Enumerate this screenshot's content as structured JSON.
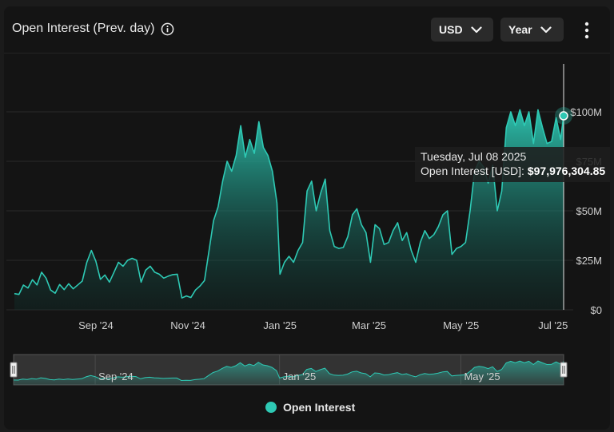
{
  "header": {
    "title": "Open Interest (Prev. day)",
    "currency_label": "USD",
    "range_label": "Year"
  },
  "tooltip": {
    "date": "Tuesday, Jul 08 2025",
    "series_label": "Open Interest [USD]: ",
    "value": "$97,976,304.85"
  },
  "colors": {
    "series": "#2ec9b4",
    "background": "#141414",
    "grid": "#2a2a2a"
  },
  "chart_data": {
    "type": "area",
    "x_ticks": [
      "Sep '24",
      "Nov '24",
      "Jan '25",
      "Mar '25",
      "May '25",
      "Jul '25"
    ],
    "x_tick_dates": [
      "2024-09-01",
      "2024-11-01",
      "2025-01-01",
      "2025-03-01",
      "2025-05-01",
      "2025-07-01"
    ],
    "x_range": [
      "2024-07-09",
      "2025-07-08"
    ],
    "y_ticks": [
      "$0",
      "$25M",
      "$50M",
      "$75M",
      "$100M"
    ],
    "y_tick_values": [
      0,
      25,
      50,
      75,
      100
    ],
    "ylim": [
      0,
      125
    ],
    "y_unit": "USD millions",
    "grid": true,
    "legend": "bottom-center",
    "navigator_ticks": [
      "Sep '24",
      "Jan '25",
      "May '25"
    ],
    "series": [
      {
        "name": "Open Interest",
        "points": [
          [
            "2024-07-09",
            8.2
          ],
          [
            "2024-07-12",
            7.8
          ],
          [
            "2024-07-15",
            12.5
          ],
          [
            "2024-07-18",
            11.0
          ],
          [
            "2024-07-21",
            15.2
          ],
          [
            "2024-07-24",
            12.6
          ],
          [
            "2024-07-27",
            19.0
          ],
          [
            "2024-07-30",
            16.0
          ],
          [
            "2024-08-02",
            10.0
          ],
          [
            "2024-08-05",
            8.4
          ],
          [
            "2024-08-08",
            12.8
          ],
          [
            "2024-08-11",
            10.2
          ],
          [
            "2024-08-14",
            13.2
          ],
          [
            "2024-08-17",
            10.6
          ],
          [
            "2024-08-20",
            12.6
          ],
          [
            "2024-08-23",
            14.5
          ],
          [
            "2024-08-26",
            24.0
          ],
          [
            "2024-08-29",
            30.0
          ],
          [
            "2024-09-01",
            24.5
          ],
          [
            "2024-09-04",
            15.4
          ],
          [
            "2024-09-07",
            17.6
          ],
          [
            "2024-09-10",
            14.0
          ],
          [
            "2024-09-13",
            19.0
          ],
          [
            "2024-09-16",
            24.0
          ],
          [
            "2024-09-19",
            22.0
          ],
          [
            "2024-09-22",
            25.0
          ],
          [
            "2024-09-25",
            26.0
          ],
          [
            "2024-09-28",
            25.0
          ],
          [
            "2024-10-01",
            14.0
          ],
          [
            "2024-10-04",
            20.0
          ],
          [
            "2024-10-07",
            22.0
          ],
          [
            "2024-10-10",
            19.0
          ],
          [
            "2024-10-13",
            18.0
          ],
          [
            "2024-10-16",
            16.0
          ],
          [
            "2024-10-19",
            17.0
          ],
          [
            "2024-10-22",
            17.8
          ],
          [
            "2024-10-25",
            18.0
          ],
          [
            "2024-10-28",
            6.0
          ],
          [
            "2024-10-31",
            7.0
          ],
          [
            "2024-11-03",
            6.2
          ],
          [
            "2024-11-06",
            10.0
          ],
          [
            "2024-11-09",
            12.0
          ],
          [
            "2024-11-12",
            14.8
          ],
          [
            "2024-11-15",
            30.0
          ],
          [
            "2024-11-18",
            45.0
          ],
          [
            "2024-11-21",
            52.0
          ],
          [
            "2024-11-24",
            65.0
          ],
          [
            "2024-11-27",
            75.0
          ],
          [
            "2024-11-30",
            70.0
          ],
          [
            "2024-12-03",
            78.0
          ],
          [
            "2024-12-06",
            93.0
          ],
          [
            "2024-12-09",
            77.0
          ],
          [
            "2024-12-12",
            86.0
          ],
          [
            "2024-12-15",
            79.0
          ],
          [
            "2024-12-18",
            95.0
          ],
          [
            "2024-12-21",
            82.0
          ],
          [
            "2024-12-24",
            78.0
          ],
          [
            "2024-12-27",
            70.0
          ],
          [
            "2024-12-30",
            54.0
          ],
          [
            "2025-01-01",
            18.0
          ],
          [
            "2025-01-04",
            24.0
          ],
          [
            "2025-01-07",
            27.0
          ],
          [
            "2025-01-10",
            24.0
          ],
          [
            "2025-01-13",
            30.0
          ],
          [
            "2025-01-16",
            34.0
          ],
          [
            "2025-01-19",
            60.0
          ],
          [
            "2025-01-22",
            65.0
          ],
          [
            "2025-01-25",
            50.0
          ],
          [
            "2025-01-28",
            59.0
          ],
          [
            "2025-01-31",
            66.0
          ],
          [
            "2025-02-03",
            40.0
          ],
          [
            "2025-02-06",
            32.0
          ],
          [
            "2025-02-09",
            31.0
          ],
          [
            "2025-02-12",
            31.5
          ],
          [
            "2025-02-15",
            37.0
          ],
          [
            "2025-02-18",
            48.0
          ],
          [
            "2025-02-21",
            51.0
          ],
          [
            "2025-02-24",
            43.0
          ],
          [
            "2025-02-27",
            39.0
          ],
          [
            "2025-03-02",
            24.0
          ],
          [
            "2025-03-05",
            43.0
          ],
          [
            "2025-03-08",
            41.0
          ],
          [
            "2025-03-11",
            33.0
          ],
          [
            "2025-03-14",
            34.0
          ],
          [
            "2025-03-17",
            40.0
          ],
          [
            "2025-03-20",
            44.0
          ],
          [
            "2025-03-23",
            35.0
          ],
          [
            "2025-03-26",
            39.0
          ],
          [
            "2025-03-29",
            30.0
          ],
          [
            "2025-04-01",
            24.0
          ],
          [
            "2025-04-04",
            34.0
          ],
          [
            "2025-04-07",
            40.0
          ],
          [
            "2025-04-10",
            36.0
          ],
          [
            "2025-04-13",
            38.0
          ],
          [
            "2025-04-16",
            42.0
          ],
          [
            "2025-04-19",
            48.0
          ],
          [
            "2025-04-22",
            50.0
          ],
          [
            "2025-04-25",
            28.0
          ],
          [
            "2025-04-28",
            31.0
          ],
          [
            "2025-05-01",
            32.0
          ],
          [
            "2025-05-04",
            34.0
          ],
          [
            "2025-05-07",
            50.0
          ],
          [
            "2025-05-10",
            70.0
          ],
          [
            "2025-05-13",
            75.0
          ],
          [
            "2025-05-16",
            72.0
          ],
          [
            "2025-05-19",
            64.0
          ],
          [
            "2025-05-22",
            73.0
          ],
          [
            "2025-05-25",
            50.0
          ],
          [
            "2025-05-28",
            60.0
          ],
          [
            "2025-05-31",
            92.0
          ],
          [
            "2025-06-03",
            100.0
          ],
          [
            "2025-06-06",
            93.0
          ],
          [
            "2025-06-09",
            101.0
          ],
          [
            "2025-06-12",
            93.0
          ],
          [
            "2025-06-15",
            100.0
          ],
          [
            "2025-06-18",
            84.0
          ],
          [
            "2025-06-21",
            101.0
          ],
          [
            "2025-06-24",
            92.0
          ],
          [
            "2025-06-27",
            84.0
          ],
          [
            "2025-06-30",
            85.0
          ],
          [
            "2025-07-03",
            97.0
          ],
          [
            "2025-07-06",
            86.0
          ],
          [
            "2025-07-08",
            97.98
          ]
        ]
      }
    ]
  }
}
